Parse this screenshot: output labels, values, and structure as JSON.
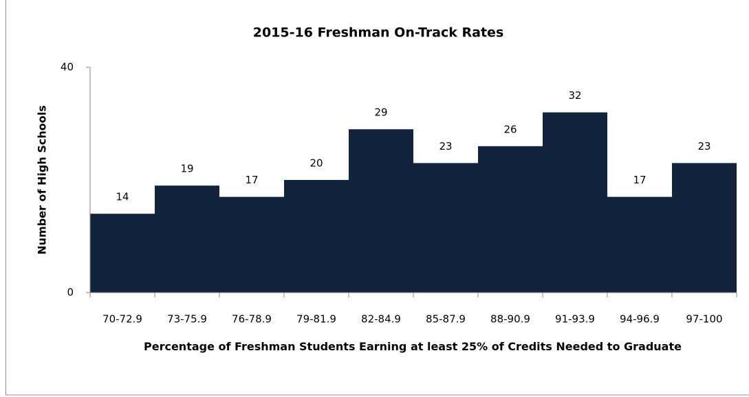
{
  "chart_data": {
    "type": "bar",
    "title": "2015-16 Freshman On-Track Rates",
    "y_label": "Number of High Schools",
    "x_label": "Percentage of Freshman Students Earning at least 25% of Credits Needed to Graduate",
    "categories": [
      "70-72.9",
      "73-75.9",
      "76-78.9",
      "79-81.9",
      "82-84.9",
      "85-87.9",
      "88-90.9",
      "91-93.9",
      "94-96.9",
      "97-100"
    ],
    "values": [
      14,
      19,
      17,
      20,
      29,
      23,
      26,
      32,
      17,
      23
    ],
    "color": "#12233d",
    "ylim": [
      0,
      40
    ],
    "yticks": [
      0,
      40
    ],
    "grid": false
  }
}
